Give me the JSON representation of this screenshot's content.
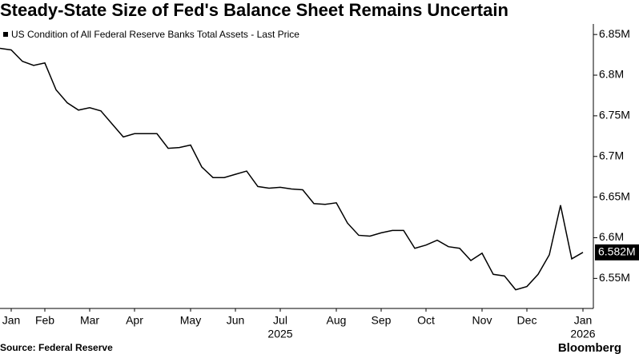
{
  "chart_data": {
    "type": "line",
    "title": "Steady-State Size of Fed's Balance Sheet Remains Uncertain",
    "source": "Source: Federal Reserve",
    "brand": "Bloomberg",
    "categories": [
      null,
      "Jan",
      null,
      null,
      "Feb",
      null,
      null,
      null,
      "Mar",
      null,
      null,
      null,
      "Apr",
      null,
      null,
      null,
      null,
      "May",
      null,
      null,
      null,
      "Jun",
      null,
      null,
      null,
      "Jul",
      null,
      null,
      null,
      null,
      "Aug",
      null,
      null,
      null,
      "Sep",
      null,
      null,
      null,
      "Oct",
      null,
      null,
      null,
      null,
      "Nov",
      null,
      null,
      null,
      "Dec",
      null,
      null,
      null,
      null,
      "Jan"
    ],
    "year_labels": {
      "25": "2025",
      "52": "2026"
    },
    "series": [
      {
        "name": "US Condition of All Federal Reserve Banks Total Assets - Last Price",
        "color": "#000000",
        "values": [
          6.833,
          6.831,
          6.817,
          6.812,
          6.815,
          6.782,
          6.766,
          6.757,
          6.76,
          6.756,
          6.74,
          6.724,
          6.728,
          6.728,
          6.728,
          6.71,
          6.711,
          6.714,
          6.687,
          6.674,
          6.674,
          6.678,
          6.682,
          6.663,
          6.661,
          6.662,
          6.66,
          6.659,
          6.642,
          6.641,
          6.643,
          6.618,
          6.603,
          6.602,
          6.606,
          6.609,
          6.609,
          6.587,
          6.591,
          6.597,
          6.589,
          6.587,
          6.572,
          6.581,
          6.555,
          6.553,
          6.536,
          6.54,
          6.555,
          6.579,
          6.64,
          6.574,
          6.582
        ],
        "last_price": {
          "value": 6.582,
          "label": "6.582M"
        }
      }
    ],
    "ylim": [
      6.514,
      6.86
    ],
    "yticks": [
      {
        "value": 6.55,
        "label": "6.55M"
      },
      {
        "value": 6.6,
        "label": "6.6M"
      },
      {
        "value": 6.65,
        "label": "6.65M"
      },
      {
        "value": 6.7,
        "label": "6.7M"
      },
      {
        "value": 6.75,
        "label": "6.75M"
      },
      {
        "value": 6.8,
        "label": "6.8M"
      },
      {
        "value": 6.85,
        "label": "6.85M"
      }
    ],
    "grid": false
  }
}
